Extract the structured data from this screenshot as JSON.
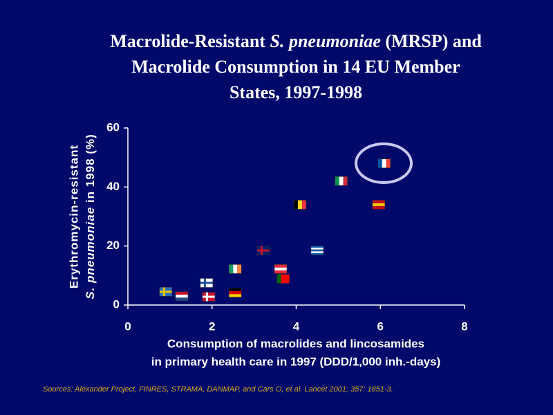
{
  "chart_data": {
    "type": "scatter",
    "title": [
      [
        "Macrolide-Resistant ",
        "S. pneumoniae",
        " (MRSP) and"
      ],
      [
        "Macrolide Consumption in 14 EU Member"
      ],
      [
        "States, 1997-1998"
      ]
    ],
    "x_label": [
      "Consumption of macrolides and lincosamides",
      "in primary health care in 1997 (DDD/1,000 inh.-days)"
    ],
    "y_label": [
      [
        "Erythromycin-resistant"
      ],
      [
        "S. pneumoniae",
        " in 1998 (%)"
      ]
    ],
    "source": "Sources: Alexander Project, FINRES, STRAMA, DANMAP, and Cars O, et al. Lancet 2001; 357: 1851-3.",
    "x": [
      0.9,
      1.28,
      1.87,
      1.92,
      2.55,
      2.55,
      3.22,
      3.63,
      3.69,
      4.09,
      4.5,
      5.07,
      5.96,
      6.09
    ],
    "values": [
      4.5,
      3.0,
      7.5,
      2.8,
      12.2,
      4.2,
      18.5,
      12.2,
      8.9,
      34.0,
      18.5,
      42.0,
      34.0,
      48.0
    ],
    "marker_flags": [
      {
        "dir": "cross",
        "colors": [
          "#2a6ebb",
          "#f5c400"
        ]
      },
      {
        "dir": "h",
        "colors": [
          "#c8102e",
          "#ffffff",
          "#21468b"
        ]
      },
      {
        "dir": "cross",
        "colors": [
          "#ffffff",
          "#1f4fa0"
        ]
      },
      {
        "dir": "cross",
        "colors": [
          "#c8102e",
          "#ffffff"
        ]
      },
      {
        "dir": "v",
        "colors": [
          "#169b62",
          "#ffffff",
          "#ff883e"
        ]
      },
      {
        "dir": "h",
        "colors": [
          "#000000",
          "#dd0000",
          "#ffce00"
        ]
      },
      {
        "dir": "cross",
        "colors": [
          "#012169",
          "#c8102e"
        ]
      },
      {
        "dir": "h",
        "colors": [
          "#ed2939",
          "#ffffff",
          "#ed2939"
        ]
      },
      {
        "dir": "v",
        "colors": [
          "#006600",
          "#ff0000",
          "#ff0000"
        ]
      },
      {
        "dir": "v",
        "colors": [
          "#000000",
          "#fdda24",
          "#ef3340"
        ]
      },
      {
        "dir": "h",
        "colors": [
          "#0d5eaf",
          "#ffffff",
          "#0d5eaf",
          "#ffffff",
          "#0d5eaf"
        ]
      },
      {
        "dir": "v",
        "colors": [
          "#009246",
          "#ffffff",
          "#ce2b37"
        ]
      },
      {
        "dir": "h",
        "colors": [
          "#c60b1e",
          "#ffc400",
          "#c60b1e"
        ]
      },
      {
        "dir": "v",
        "colors": [
          "#0055a4",
          "#ffffff",
          "#ef4135"
        ]
      }
    ],
    "xlim": [
      0,
      8
    ],
    "xticks": [
      0,
      2,
      4,
      6,
      8
    ],
    "ylim": [
      0,
      60
    ],
    "yticks": [
      0,
      20,
      40,
      60
    ]
  }
}
